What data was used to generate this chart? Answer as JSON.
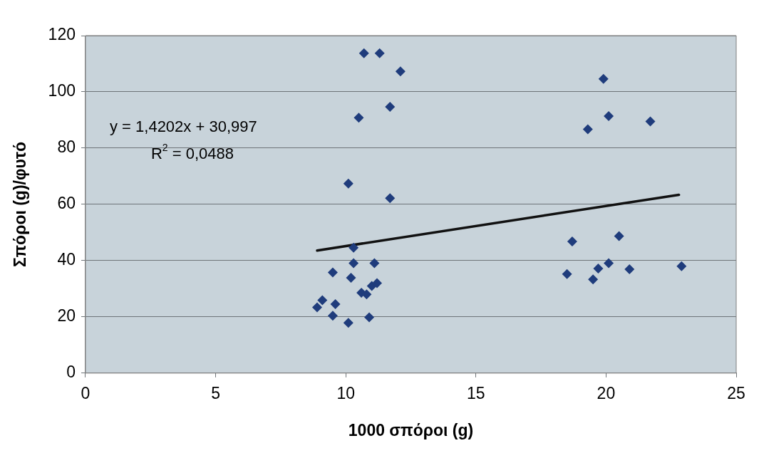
{
  "chart_data": {
    "type": "scatter",
    "xlabel": "1000 σπόροι (g)",
    "ylabel": "Σπόροι (g)/φυτό",
    "xlim": [
      0,
      25
    ],
    "xticks": [
      0,
      5,
      10,
      15,
      20,
      25
    ],
    "ylim": [
      0,
      120
    ],
    "yticks": [
      0,
      20,
      40,
      60,
      80,
      100,
      120
    ],
    "grid": "y",
    "legend": false,
    "marker": "diamond",
    "annotations": [
      "y = 1,4202x + 30,997",
      "R$^{2}$ = 0,0488"
    ],
    "series": [
      {
        "color": "#1f3c7c",
        "x": [
          10.7,
          11.3,
          12.1,
          11.7,
          10.5,
          10.1,
          11.7,
          10.3,
          10.3,
          11.1,
          9.5,
          10.2,
          10.6,
          10.8,
          11.0,
          11.2,
          9.1,
          8.9,
          9.6,
          9.5,
          10.1,
          10.9,
          19.9,
          20.1,
          19.3,
          21.7,
          18.7,
          20.5,
          18.5,
          19.7,
          20.1,
          19.5,
          20.9,
          22.9
        ],
        "values": [
          113.7,
          113.7,
          107.3,
          94.7,
          90.8,
          67.4,
          62.2,
          44.6,
          39.1,
          39.1,
          35.8,
          33.9,
          28.6,
          28,
          31,
          32,
          25.9,
          23.4,
          24.5,
          20.4,
          17.9,
          19.8,
          104.6,
          91.4,
          86.7,
          89.5,
          46.8,
          48.7,
          35.2,
          37.2,
          39.1,
          33.3,
          36.9,
          38
        ]
      },
      {
        "type": "line",
        "color": "#111111",
        "marker": "none",
        "x": [
          8.9,
          22.8
        ],
        "values": [
          43.6,
          63.4
        ]
      }
    ]
  }
}
